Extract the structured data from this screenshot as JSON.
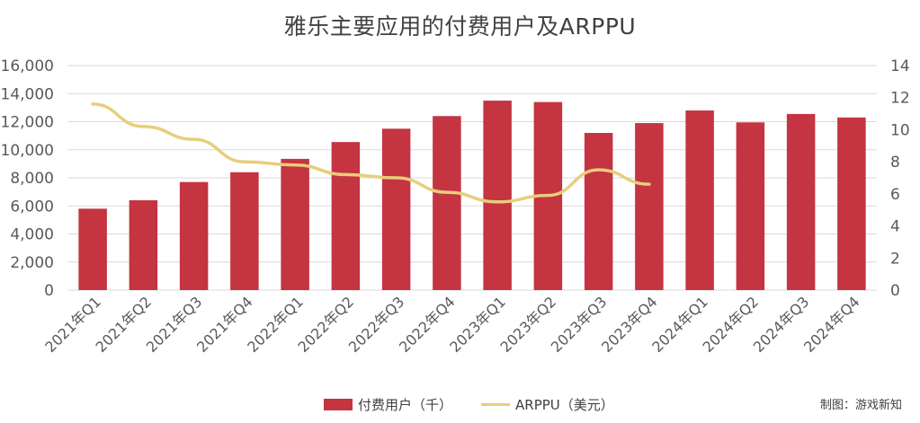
{
  "title": "雅乐主要应用的付费用户及ARPPU",
  "source_note": "制图：游戏新知",
  "colors": {
    "bar": "#C43441",
    "line": "#E8CE7A",
    "grid": "#D9D9D9",
    "text": "#595959"
  },
  "chart_data": {
    "type": "bar",
    "categories": [
      "2021年Q1",
      "2021年Q2",
      "2021年Q3",
      "2021年Q4",
      "2022年Q1",
      "2022年Q2",
      "2022年Q3",
      "2022年Q4",
      "2023年Q1",
      "2023年Q2",
      "2023年Q3",
      "2023年Q4",
      "2024年Q1",
      "2024年Q2",
      "2024年Q3",
      "2024年Q4"
    ],
    "series": [
      {
        "name": "付费用户（千）",
        "type": "bar",
        "axis": "left",
        "values": [
          5800,
          6400,
          7700,
          8400,
          9350,
          10550,
          11500,
          12400,
          13500,
          13400,
          11200,
          11900,
          12800,
          11950,
          12550,
          12300
        ]
      },
      {
        "name": "ARPPU（美元）",
        "type": "line",
        "axis": "right",
        "values": [
          11.6,
          10.2,
          9.4,
          8.0,
          7.8,
          7.2,
          7.0,
          6.1,
          5.5,
          5.9,
          7.5,
          6.6,
          null,
          null,
          null,
          null
        ]
      }
    ],
    "y_left": {
      "min": 0,
      "max": 16000,
      "ticks": [
        "0",
        "2,000",
        "4,000",
        "6,000",
        "8,000",
        "10,000",
        "12,000",
        "14,000",
        "16,000"
      ]
    },
    "y_right": {
      "min": 0,
      "max": 14,
      "ticks": [
        "0",
        "2",
        "4",
        "6",
        "8",
        "10",
        "12",
        "14"
      ]
    },
    "grid": true,
    "legend_position": "bottom"
  }
}
